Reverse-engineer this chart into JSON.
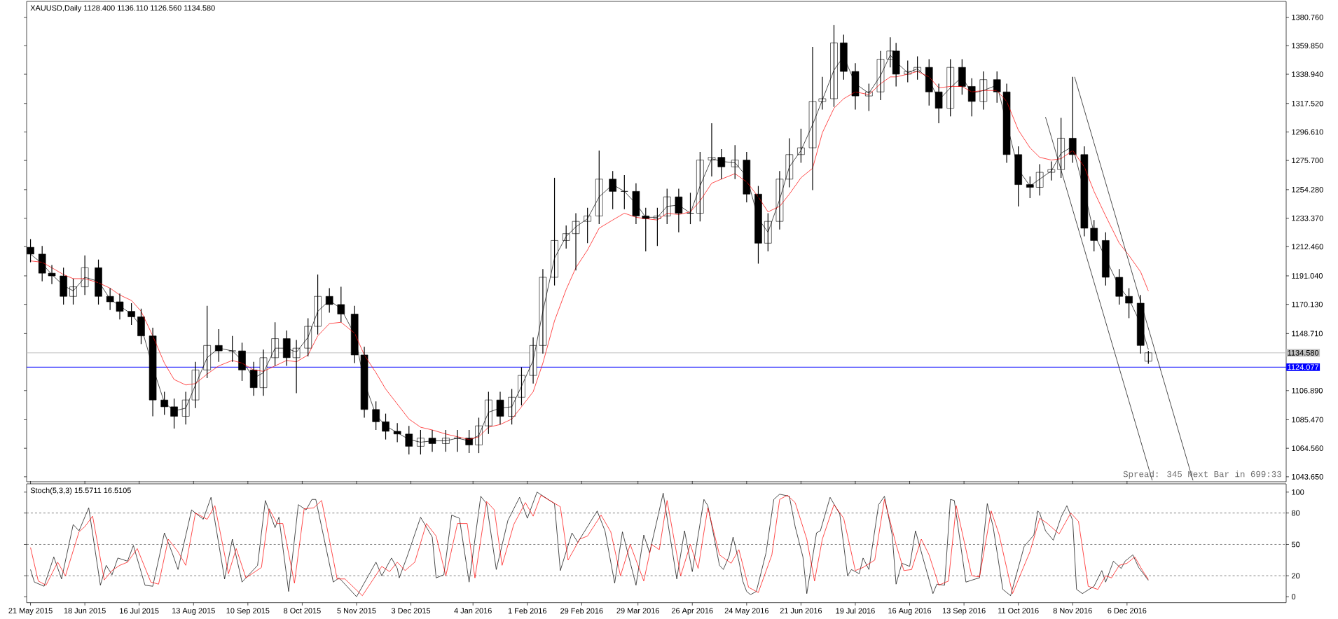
{
  "chart_data": [
    {
      "type": "candlestick",
      "title": "XAUUSD,Daily 1128.400 1136.110 1126.560 1134.580",
      "x": [
        "2015-05-21",
        "2015-05-27",
        "2015-06-01",
        "2015-06-07",
        "2015-06-12",
        "2015-06-18",
        "2015-06-25",
        "2015-07-01",
        "2015-07-06",
        "2015-07-12",
        "2015-07-17",
        "2015-07-23",
        "2015-07-29",
        "2015-08-03",
        "2015-08-09",
        "2015-08-14",
        "2015-08-20",
        "2015-08-26",
        "2015-09-02",
        "2015-09-07",
        "2015-09-13",
        "2015-09-18",
        "2015-09-24",
        "2015-09-30",
        "2015-10-05",
        "2015-10-11",
        "2015-10-16",
        "2015-10-22",
        "2015-10-28",
        "2015-11-04",
        "2015-11-09",
        "2015-11-15",
        "2015-11-20",
        "2015-11-26",
        "2015-12-02",
        "2015-12-08",
        "2015-12-14",
        "2015-12-21",
        "2015-12-27",
        "2016-01-02",
        "2016-01-07",
        "2016-01-12",
        "2016-01-18",
        "2016-01-24",
        "2016-01-29",
        "2016-02-04",
        "2016-02-09",
        "2016-02-15",
        "2016-02-21",
        "2016-02-26",
        "2016-03-03",
        "2016-03-09",
        "2016-03-16",
        "2016-03-22",
        "2016-03-28",
        "2016-04-02",
        "2016-04-08",
        "2016-04-13",
        "2016-04-19",
        "2016-04-25",
        "2016-04-30",
        "2016-05-06",
        "2016-05-11",
        "2016-05-18",
        "2016-05-24",
        "2016-05-30",
        "2016-06-04",
        "2016-06-10",
        "2016-06-15",
        "2016-06-21",
        "2016-06-27",
        "2016-07-02",
        "2016-07-08",
        "2016-07-13",
        "2016-07-19",
        "2016-07-26",
        "2016-08-01",
        "2016-08-06",
        "2016-08-09",
        "2016-08-15",
        "2016-08-20",
        "2016-08-26",
        "2016-08-31",
        "2016-09-06",
        "2016-09-12",
        "2016-09-17",
        "2016-09-23",
        "2016-09-30",
        "2016-10-05",
        "2016-10-11",
        "2016-10-17",
        "2016-10-22",
        "2016-10-28",
        "2016-11-02",
        "2016-11-08",
        "2016-11-14",
        "2016-11-19",
        "2016-11-25",
        "2016-12-02",
        "2016-12-07",
        "2016-12-13",
        "2016-12-17"
      ],
      "ohlc": [
        [
          1212,
          1218,
          1201,
          1207
        ],
        [
          1207,
          1213,
          1187,
          1193
        ],
        [
          1193,
          1199,
          1185,
          1191
        ],
        [
          1191,
          1197,
          1170,
          1176
        ],
        [
          1176,
          1189,
          1170,
          1183
        ],
        [
          1183,
          1206,
          1177,
          1197
        ],
        [
          1197,
          1203,
          1170,
          1176
        ],
        [
          1176,
          1182,
          1166,
          1172
        ],
        [
          1172,
          1178,
          1159,
          1165
        ],
        [
          1165,
          1171,
          1155,
          1161
        ],
        [
          1161,
          1167,
          1141,
          1147
        ],
        [
          1147,
          1153,
          1088,
          1100
        ],
        [
          1100,
          1106,
          1089,
          1095
        ],
        [
          1095,
          1101,
          1079,
          1088
        ],
        [
          1088,
          1106,
          1082,
          1100
        ],
        [
          1100,
          1128,
          1094,
          1122
        ],
        [
          1122,
          1169,
          1116,
          1140
        ],
        [
          1140,
          1152,
          1128,
          1136
        ],
        [
          1136,
          1147,
          1128,
          1136
        ],
        [
          1136,
          1142,
          1114,
          1122
        ],
        [
          1122,
          1128,
          1103,
          1109
        ],
        [
          1109,
          1137,
          1103,
          1131
        ],
        [
          1131,
          1157,
          1125,
          1145
        ],
        [
          1145,
          1151,
          1125,
          1131
        ],
        [
          1131,
          1144,
          1105,
          1138
        ],
        [
          1138,
          1160,
          1132,
          1154
        ],
        [
          1154,
          1192,
          1148,
          1176
        ],
        [
          1176,
          1182,
          1164,
          1170
        ],
        [
          1170,
          1183,
          1157,
          1163
        ],
        [
          1163,
          1169,
          1127,
          1133
        ],
        [
          1133,
          1139,
          1087,
          1093
        ],
        [
          1093,
          1099,
          1078,
          1084
        ],
        [
          1084,
          1090,
          1071,
          1077
        ],
        [
          1077,
          1083,
          1069,
          1075
        ],
        [
          1075,
          1081,
          1060,
          1066
        ],
        [
          1066,
          1078,
          1060,
          1072
        ],
        [
          1072,
          1078,
          1062,
          1068
        ],
        [
          1068,
          1078,
          1062,
          1072
        ],
        [
          1072,
          1078,
          1062,
          1072
        ],
        [
          1072,
          1078,
          1061,
          1067
        ],
        [
          1067,
          1087,
          1061,
          1081
        ],
        [
          1081,
          1106,
          1075,
          1100
        ],
        [
          1100,
          1106,
          1082,
          1088
        ],
        [
          1088,
          1108,
          1082,
          1102
        ],
        [
          1102,
          1124,
          1096,
          1118
        ],
        [
          1118,
          1146,
          1112,
          1140
        ],
        [
          1140,
          1196,
          1134,
          1190
        ],
        [
          1190,
          1263,
          1184,
          1217
        ],
        [
          1217,
          1228,
          1211,
          1222
        ],
        [
          1222,
          1237,
          1195,
          1231
        ],
        [
          1231,
          1241,
          1215,
          1235
        ],
        [
          1235,
          1283,
          1229,
          1262
        ],
        [
          1262,
          1268,
          1240,
          1253
        ],
        [
          1253,
          1265,
          1240,
          1253
        ],
        [
          1253,
          1259,
          1229,
          1235
        ],
        [
          1235,
          1241,
          1209,
          1233
        ],
        [
          1233,
          1241,
          1213,
          1235
        ],
        [
          1235,
          1255,
          1229,
          1249
        ],
        [
          1249,
          1255,
          1223,
          1237
        ],
        [
          1237,
          1252,
          1229,
          1237
        ],
        [
          1237,
          1282,
          1231,
          1276
        ],
        [
          1276,
          1303,
          1264,
          1278
        ],
        [
          1278,
          1284,
          1262,
          1271
        ],
        [
          1271,
          1287,
          1262,
          1276
        ],
        [
          1276,
          1282,
          1245,
          1251
        ],
        [
          1251,
          1257,
          1200,
          1215
        ],
        [
          1215,
          1237,
          1209,
          1231
        ],
        [
          1231,
          1268,
          1225,
          1262
        ],
        [
          1262,
          1292,
          1256,
          1280
        ],
        [
          1280,
          1299,
          1274,
          1285
        ],
        [
          1285,
          1359,
          1254,
          1319
        ],
        [
          1319,
          1337,
          1313,
          1321
        ],
        [
          1321,
          1375,
          1315,
          1362
        ],
        [
          1362,
          1368,
          1335,
          1341
        ],
        [
          1341,
          1347,
          1313,
          1323
        ],
        [
          1323,
          1332,
          1312,
          1326
        ],
        [
          1326,
          1356,
          1320,
          1350
        ],
        [
          1350,
          1366,
          1344,
          1356
        ],
        [
          1356,
          1362,
          1330,
          1339
        ],
        [
          1339,
          1349,
          1333,
          1341
        ],
        [
          1341,
          1352,
          1335,
          1344
        ],
        [
          1344,
          1350,
          1316,
          1326
        ],
        [
          1326,
          1332,
          1303,
          1314
        ],
        [
          1314,
          1350,
          1308,
          1344
        ],
        [
          1344,
          1350,
          1324,
          1330
        ],
        [
          1330,
          1336,
          1308,
          1319
        ],
        [
          1319,
          1341,
          1313,
          1335
        ],
        [
          1335,
          1341,
          1318,
          1326
        ],
        [
          1326,
          1332,
          1274,
          1280
        ],
        [
          1280,
          1286,
          1242,
          1258
        ],
        [
          1258,
          1264,
          1248,
          1256
        ],
        [
          1256,
          1273,
          1250,
          1267
        ],
        [
          1267,
          1275,
          1261,
          1269
        ],
        [
          1269,
          1307,
          1263,
          1292
        ],
        [
          1292,
          1337,
          1274,
          1280
        ],
        [
          1280,
          1286,
          1220,
          1226
        ],
        [
          1226,
          1232,
          1209,
          1217
        ],
        [
          1217,
          1223,
          1184,
          1190
        ],
        [
          1190,
          1196,
          1170,
          1176
        ],
        [
          1176,
          1182,
          1160,
          1171
        ],
        [
          1171,
          1177,
          1134,
          1140
        ],
        [
          1128.4,
          1136.11,
          1126.56,
          1134.58
        ]
      ],
      "series": [
        {
          "type": "line",
          "color": "#000000",
          "values": [
            1207,
            1200,
            1192,
            1184,
            1180,
            1190,
            1187,
            1174,
            1169,
            1163,
            1154,
            1124,
            1098,
            1092,
            1094,
            1111,
            1131,
            1138,
            1136,
            1129,
            1116,
            1120,
            1138,
            1138,
            1135,
            1146,
            1165,
            1173,
            1167,
            1148,
            1113,
            1089,
            1081,
            1076,
            1071,
            1069,
            1070,
            1070,
            1072,
            1070,
            1074,
            1091,
            1094,
            1095,
            1110,
            1129,
            1165,
            1204,
            1220,
            1227,
            1233,
            1249,
            1258,
            1253,
            1244,
            1234,
            1234,
            1242,
            1243,
            1237,
            1257,
            1277,
            1275,
            1274,
            1264,
            1233,
            1223,
            1247,
            1271,
            1283,
            1302,
            1320,
            1342,
            1352,
            1332,
            1325,
            1338,
            1353,
            1348,
            1340,
            1343,
            1335,
            1320,
            1329,
            1337,
            1325,
            1327,
            1331,
            1303,
            1269,
            1257,
            1262,
            1268,
            1281,
            1286,
            1253,
            1222,
            1204,
            1183,
            1174,
            1156,
            1137
          ]
        },
        {
          "type": "line",
          "color": "#ff0000",
          "values": [
            1202,
            1201,
            1197,
            1192,
            1189,
            1189,
            1186,
            1182,
            1177,
            1173,
            1165,
            1147,
            1127,
            1115,
            1111,
            1112,
            1119,
            1125,
            1129,
            1127,
            1122,
            1121,
            1125,
            1129,
            1128,
            1133,
            1147,
            1156,
            1157,
            1149,
            1133,
            1120,
            1108,
            1097,
            1086,
            1080,
            1078,
            1075,
            1073,
            1071,
            1073,
            1080,
            1082,
            1086,
            1095,
            1106,
            1127,
            1158,
            1181,
            1197,
            1210,
            1226,
            1232,
            1237,
            1234,
            1233,
            1232,
            1237,
            1236,
            1238,
            1246,
            1259,
            1262,
            1266,
            1260,
            1249,
            1238,
            1242,
            1251,
            1263,
            1270,
            1296,
            1314,
            1321,
            1326,
            1324,
            1332,
            1337,
            1337,
            1339,
            1341,
            1337,
            1329,
            1330,
            1330,
            1326,
            1327,
            1327,
            1319,
            1298,
            1285,
            1278,
            1276,
            1277,
            1283,
            1271,
            1253,
            1235,
            1215,
            1206,
            1194,
            1180
          ]
        },
        {
          "type": "line",
          "color": "#000000",
          "x": [
            "2016-10-25",
            "2016-12-19"
          ],
          "values": [
            1307.5,
            1041
          ]
        },
        {
          "type": "line",
          "color": "#000000",
          "x": [
            "2016-11-09",
            "2017-01-09"
          ],
          "values": [
            1337,
            1041
          ]
        }
      ],
      "ref_lines": [
        {
          "axis": "y",
          "value": 1134.58,
          "label": "1134.580",
          "color": "#c0c0c0"
        },
        {
          "axis": "y",
          "value": 1124.077,
          "label": "1124.077",
          "color": "#0000ff"
        }
      ],
      "annotations": [
        "Spread: 345 Next Bar in 699:33"
      ],
      "xlim": [
        "2015-05-19",
        "2017-02-26"
      ],
      "ylim": [
        1040,
        1392.4
      ],
      "yticks": [
        {
          "value": 1043.65,
          "label": "1043.650"
        },
        {
          "value": 1064.56,
          "label": "1064.560"
        },
        {
          "value": 1085.47,
          "label": "1085.470"
        },
        {
          "value": 1106.89,
          "label": "1106.890"
        },
        {
          "value": 1148.71,
          "label": "1148.710"
        },
        {
          "value": 1170.13,
          "label": "1170.130"
        },
        {
          "value": 1191.04,
          "label": "1191.040"
        },
        {
          "value": 1212.46,
          "label": "1212.460"
        },
        {
          "value": 1233.37,
          "label": "1233.370"
        },
        {
          "value": 1254.28,
          "label": "1254.280"
        },
        {
          "value": 1275.7,
          "label": "1275.700"
        },
        {
          "value": 1296.61,
          "label": "1296.610"
        },
        {
          "value": 1317.52,
          "label": "1317.520"
        },
        {
          "value": 1338.94,
          "label": "1338.940"
        },
        {
          "value": 1359.85,
          "label": "1359.850"
        },
        {
          "value": 1380.76,
          "label": "1380.760"
        }
      ],
      "tick_labels": "y"
    },
    {
      "type": "line",
      "title": "Stoch(5,3,3) 15.5711 16.5105",
      "series": [
        {
          "color": "#000000",
          "x": [
            "2015-05-21",
            "2015-05-23",
            "2015-05-28",
            "2015-06-02",
            "2015-06-06",
            "2015-06-12",
            "2015-06-15",
            "2015-06-20",
            "2015-06-26",
            "2015-06-29",
            "2015-07-02",
            "2015-07-05",
            "2015-07-10",
            "2015-07-13",
            "2015-07-19",
            "2015-07-23",
            "2015-07-29",
            "2015-08-02",
            "2015-08-05",
            "2015-08-12",
            "2015-08-18",
            "2015-08-22",
            "2015-08-29",
            "2015-09-02",
            "2015-09-07",
            "2015-09-15",
            "2015-09-19",
            "2015-09-24",
            "2015-09-26",
            "2015-10-01",
            "2015-10-06",
            "2015-10-10",
            "2015-10-13",
            "2015-10-15",
            "2015-10-24",
            "2015-10-27",
            "2015-11-05",
            "2015-11-15",
            "2015-11-18",
            "2015-11-23",
            "2015-11-26",
            "2015-11-27",
            "2015-12-01",
            "2015-12-08",
            "2015-12-14",
            "2015-12-16",
            "2015-12-20",
            "2015-12-24",
            "2015-12-28",
            "2016-01-02",
            "2016-01-08",
            "2016-01-11",
            "2016-01-16",
            "2016-01-22",
            "2016-01-28",
            "2016-02-01",
            "2016-02-06",
            "2016-02-15",
            "2016-02-18",
            "2016-02-24",
            "2016-02-27",
            "2016-02-29",
            "2016-03-08",
            "2016-03-12",
            "2016-03-17",
            "2016-03-21",
            "2016-03-28",
            "2016-04-01",
            "2016-04-04",
            "2016-04-11",
            "2016-04-18",
            "2016-04-22",
            "2016-04-26",
            "2016-05-02",
            "2016-05-04",
            "2016-05-07",
            "2016-05-10",
            "2016-05-12",
            "2016-05-15",
            "2016-05-17",
            "2016-05-20",
            "2016-05-22",
            "2016-05-24",
            "2016-05-26",
            "2016-05-29",
            "2016-06-03",
            "2016-06-07",
            "2016-06-10",
            "2016-06-15",
            "2016-06-18",
            "2016-06-22",
            "2016-06-24",
            "2016-06-29",
            "2016-07-01",
            "2016-07-06",
            "2016-07-11",
            "2016-07-15",
            "2016-07-17",
            "2016-07-21",
            "2016-07-23",
            "2016-07-26",
            "2016-07-31",
            "2016-08-03",
            "2016-08-07",
            "2016-08-09",
            "2016-08-12",
            "2016-08-16",
            "2016-08-19",
            "2016-08-23",
            "2016-08-28",
            "2016-08-30",
            "2016-09-03",
            "2016-09-06",
            "2016-09-08",
            "2016-09-14",
            "2016-09-19",
            "2016-09-21",
            "2016-09-25",
            "2016-09-28",
            "2016-10-03",
            "2016-10-07",
            "2016-10-14",
            "2016-10-19",
            "2016-10-21",
            "2016-10-22",
            "2016-10-25",
            "2016-10-29",
            "2016-11-02",
            "2016-11-05",
            "2016-11-08",
            "2016-11-10",
            "2016-11-13",
            "2016-11-19",
            "2016-11-23",
            "2016-11-25",
            "2016-11-29",
            "2016-12-03",
            "2016-12-05",
            "2016-12-09",
            "2016-12-12",
            "2016-12-17"
          ],
          "values": [
            26,
            14,
            10,
            38,
            17,
            69,
            63,
            85,
            11,
            30,
            21,
            37,
            34,
            49,
            11,
            10,
            61,
            42,
            26,
            83,
            74,
            95,
            17,
            55,
            14,
            30,
            92,
            66,
            76,
            5,
            88,
            83,
            93,
            93,
            14,
            18,
            0,
            33,
            20,
            37,
            27,
            18,
            38,
            76,
            57,
            18,
            21,
            78,
            75,
            14,
            96,
            89,
            26,
            73,
            95,
            75,
            100,
            89,
            25,
            61,
            52,
            58,
            82,
            63,
            13,
            62,
            11,
            59,
            42,
            99,
            17,
            63,
            24,
            93,
            87,
            59,
            30,
            26,
            39,
            57,
            34,
            15,
            5,
            2,
            5,
            42,
            93,
            98,
            96,
            67,
            38,
            3,
            61,
            63,
            95,
            79,
            20,
            26,
            22,
            37,
            26,
            88,
            96,
            59,
            12,
            32,
            29,
            63,
            36,
            3,
            12,
            11,
            93,
            92,
            14,
            17,
            18,
            89,
            67,
            7,
            1,
            48,
            59,
            82,
            80,
            63,
            54,
            76,
            87,
            73,
            7,
            3,
            10,
            25,
            14,
            34,
            27,
            34,
            40,
            28,
            15.6
          ]
        },
        {
          "color": "#ff0000",
          "x": [
            "2015-05-21",
            "2015-05-25",
            "2015-05-29",
            "2015-06-04",
            "2015-06-08",
            "2015-06-15",
            "2015-06-18",
            "2015-06-22",
            "2015-06-28",
            "2015-07-02",
            "2015-07-06",
            "2015-07-10",
            "2015-07-15",
            "2015-07-22",
            "2015-07-26",
            "2015-07-31",
            "2015-08-05",
            "2015-08-09",
            "2015-08-14",
            "2015-08-20",
            "2015-08-24",
            "2015-08-31",
            "2015-09-04",
            "2015-09-09",
            "2015-09-17",
            "2015-09-21",
            "2015-09-25",
            "2015-09-28",
            "2015-10-04",
            "2015-10-09",
            "2015-10-14",
            "2015-10-18",
            "2015-10-26",
            "2015-10-30",
            "2015-11-08",
            "2015-11-18",
            "2015-11-22",
            "2015-11-26",
            "2015-11-30",
            "2015-12-05",
            "2015-12-11",
            "2015-12-16",
            "2015-12-21",
            "2015-12-27",
            "2016-01-01",
            "2016-01-05",
            "2016-01-11",
            "2016-01-15",
            "2016-01-19",
            "2016-01-25",
            "2016-01-31",
            "2016-02-04",
            "2016-02-08",
            "2016-02-18",
            "2016-02-22",
            "2016-02-28",
            "2016-03-03",
            "2016-03-10",
            "2016-03-15",
            "2016-03-20",
            "2016-03-25",
            "2016-04-01",
            "2016-04-05",
            "2016-04-09",
            "2016-04-13",
            "2016-04-20",
            "2016-04-25",
            "2016-04-29",
            "2016-05-04",
            "2016-05-10",
            "2016-05-16",
            "2016-05-20",
            "2016-05-25",
            "2016-05-30",
            "2016-06-06",
            "2016-06-10",
            "2016-06-14",
            "2016-06-18",
            "2016-06-24",
            "2016-06-28",
            "2016-07-02",
            "2016-07-08",
            "2016-07-13",
            "2016-07-19",
            "2016-07-23",
            "2016-07-29",
            "2016-08-03",
            "2016-08-09",
            "2016-08-13",
            "2016-08-17",
            "2016-08-22",
            "2016-08-26",
            "2016-08-31",
            "2016-09-05",
            "2016-09-09",
            "2016-09-17",
            "2016-09-21",
            "2016-09-27",
            "2016-10-01",
            "2016-10-08",
            "2016-10-17",
            "2016-10-22",
            "2016-10-26",
            "2016-11-01",
            "2016-11-07",
            "2016-11-11",
            "2016-11-16",
            "2016-11-21",
            "2016-11-25",
            "2016-11-28",
            "2016-12-02",
            "2016-12-06",
            "2016-12-10",
            "2016-12-14",
            "2016-12-17"
          ],
          "values": [
            47,
            15,
            11,
            33,
            20,
            62,
            67,
            77,
            16,
            25,
            30,
            33,
            46,
            14,
            12,
            55,
            43,
            30,
            80,
            74,
            87,
            22,
            46,
            18,
            28,
            84,
            70,
            70,
            13,
            84,
            85,
            92,
            17,
            17,
            1,
            29,
            24,
            33,
            25,
            33,
            70,
            58,
            20,
            70,
            70,
            18,
            91,
            83,
            30,
            69,
            90,
            77,
            97,
            86,
            35,
            55,
            58,
            78,
            62,
            20,
            50,
            15,
            50,
            45,
            92,
            20,
            50,
            27,
            85,
            40,
            32,
            45,
            9,
            4,
            40,
            93,
            97,
            90,
            55,
            15,
            55,
            88,
            75,
            25,
            28,
            35,
            93,
            50,
            25,
            26,
            55,
            40,
            11,
            15,
            87,
            20,
            19,
            82,
            60,
            3,
            43,
            75,
            70,
            60,
            80,
            72,
            10,
            7,
            20,
            18,
            30,
            32,
            38,
            25,
            16.5
          ]
        }
      ],
      "ref_lines": [
        {
          "axis": "y",
          "value": 20,
          "color": "#808080",
          "line_style": "dashed"
        },
        {
          "axis": "y",
          "value": 50,
          "color": "#808080",
          "line_style": "dashed"
        },
        {
          "axis": "y",
          "value": 80,
          "color": "#808080",
          "line_style": "dashed"
        }
      ],
      "xlim": [
        "2015-05-19",
        "2017-02-26"
      ],
      "ylim": [
        -5.7,
        107.9
      ],
      "xticks": [
        {
          "value": "2015-05-21",
          "label": "21 May 2015"
        },
        {
          "value": "2015-06-18",
          "label": "18 Jun 2015"
        },
        {
          "value": "2015-07-16",
          "label": "16 Jul 2015"
        },
        {
          "value": "2015-08-13",
          "label": "13 Aug 2015"
        },
        {
          "value": "2015-09-10",
          "label": "10 Sep 2015"
        },
        {
          "value": "2015-10-08",
          "label": "8 Oct 2015"
        },
        {
          "value": "2015-11-05",
          "label": "5 Nov 2015"
        },
        {
          "value": "2015-12-03",
          "label": "3 Dec 2015"
        },
        {
          "value": "2016-01-04",
          "label": "4 Jan 2016"
        },
        {
          "value": "2016-02-01",
          "label": "1 Feb 2016"
        },
        {
          "value": "2016-02-29",
          "label": "29 Feb 2016"
        },
        {
          "value": "2016-03-29",
          "label": "29 Mar 2016"
        },
        {
          "value": "2016-04-26",
          "label": "26 Apr 2016"
        },
        {
          "value": "2016-05-24",
          "label": "24 May 2016"
        },
        {
          "value": "2016-06-21",
          "label": "21 Jun 2016"
        },
        {
          "value": "2016-07-19",
          "label": "19 Jul 2016"
        },
        {
          "value": "2016-08-16",
          "label": "16 Aug 2016"
        },
        {
          "value": "2016-09-13",
          "label": "13 Sep 2016"
        },
        {
          "value": "2016-10-11",
          "label": "11 Oct 2016"
        },
        {
          "value": "2016-11-08",
          "label": "8 Nov 2016"
        },
        {
          "value": "2016-12-06",
          "label": "6 Dec 2016"
        }
      ],
      "yticks": [
        0,
        20,
        50,
        80,
        100
      ]
    }
  ]
}
